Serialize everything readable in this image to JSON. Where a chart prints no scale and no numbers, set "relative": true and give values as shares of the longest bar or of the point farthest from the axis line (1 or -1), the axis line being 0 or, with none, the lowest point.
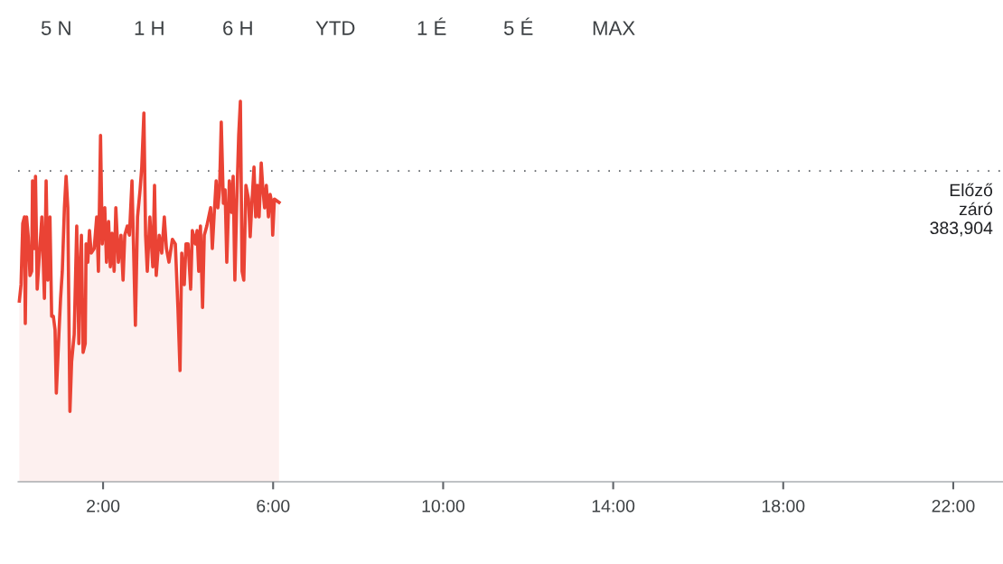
{
  "chart_data": {
    "type": "area",
    "relative": true,
    "color": "#ea4335",
    "x": [
      0.03,
      0.07,
      0.11,
      0.15,
      0.17,
      0.2,
      0.24,
      0.28,
      0.32,
      0.34,
      0.39,
      0.41,
      0.45,
      0.49,
      0.56,
      0.62,
      0.66,
      0.7,
      0.75,
      0.79,
      0.83,
      0.87,
      0.9,
      0.96,
      1.0,
      1.04,
      1.09,
      1.13,
      1.17,
      1.22,
      1.26,
      1.32,
      1.38,
      1.43,
      1.45,
      1.49,
      1.53,
      1.58,
      1.6,
      1.64,
      1.68,
      1.72,
      1.79,
      1.85,
      1.89,
      1.94,
      1.98,
      2.04,
      2.08,
      2.13,
      2.17,
      2.21,
      2.26,
      2.3,
      2.36,
      2.42,
      2.47,
      2.51,
      2.57,
      2.62,
      2.68,
      2.72,
      2.76,
      2.81,
      2.87,
      2.91,
      2.96,
      3.0,
      3.04,
      3.1,
      3.17,
      3.21,
      3.25,
      3.32,
      3.38,
      3.44,
      3.49,
      3.55,
      3.63,
      3.7,
      3.76,
      3.81,
      3.85,
      3.91,
      3.95,
      4.0,
      4.06,
      4.1,
      4.17,
      4.21,
      4.25,
      4.29,
      4.34,
      4.38,
      4.44,
      4.53,
      4.57,
      4.61,
      4.66,
      4.7,
      4.74,
      4.78,
      4.83,
      4.87,
      4.91,
      4.97,
      5.02,
      5.06,
      5.1,
      5.14,
      5.19,
      5.23,
      5.27,
      5.31,
      5.36,
      5.42,
      5.46,
      5.5,
      5.55,
      5.59,
      5.63,
      5.67,
      5.72,
      5.76,
      5.8,
      5.84,
      5.89,
      5.93,
      5.97,
      5.99,
      6.03,
      6.14
    ],
    "values": [
      0.475,
      0.518,
      0.679,
      0.696,
      0.416,
      0.696,
      0.644,
      0.542,
      0.553,
      0.791,
      0.613,
      0.803,
      0.506,
      0.577,
      0.696,
      0.482,
      0.791,
      0.53,
      0.696,
      0.435,
      0.435,
      0.399,
      0.233,
      0.387,
      0.482,
      0.553,
      0.72,
      0.803,
      0.72,
      0.185,
      0.316,
      0.387,
      0.672,
      0.363,
      0.53,
      0.648,
      0.34,
      0.363,
      0.625,
      0.577,
      0.66,
      0.601,
      0.613,
      0.696,
      0.553,
      0.91,
      0.625,
      0.72,
      0.577,
      0.684,
      0.565,
      0.653,
      0.553,
      0.72,
      0.577,
      0.648,
      0.53,
      0.648,
      0.672,
      0.648,
      0.791,
      0.601,
      0.411,
      0.696,
      0.767,
      0.827,
      0.969,
      0.648,
      0.553,
      0.696,
      0.565,
      0.779,
      0.542,
      0.648,
      0.601,
      0.696,
      0.613,
      0.577,
      0.637,
      0.625,
      0.458,
      0.292,
      0.601,
      0.518,
      0.625,
      0.625,
      0.506,
      0.66,
      0.625,
      0.66,
      0.553,
      0.672,
      0.458,
      0.648,
      0.672,
      0.72,
      0.613,
      0.696,
      0.791,
      0.72,
      0.767,
      0.945,
      0.732,
      0.767,
      0.577,
      0.791,
      0.708,
      0.803,
      0.53,
      0.72,
      0.91,
      1.0,
      0.553,
      0.53,
      0.779,
      0.743,
      0.644,
      0.732,
      0.827,
      0.696,
      0.779,
      0.696,
      0.838,
      0.767,
      0.72,
      0.779,
      0.696,
      0.755,
      0.732,
      0.648,
      0.743,
      0.734
    ],
    "xlim": [
      0,
      23.17
    ],
    "xticks": [
      {
        "value": 2,
        "label": "2:00"
      },
      {
        "value": 6,
        "label": "6:00"
      },
      {
        "value": 10,
        "label": "10:00"
      },
      {
        "value": 14,
        "label": "14:00"
      },
      {
        "value": 18,
        "label": "18:00"
      },
      {
        "value": 22,
        "label": "22:00"
      }
    ],
    "ref_lines": [
      {
        "axis": "y",
        "value": 0.817,
        "label": "Előző\nzáró\n383,904",
        "color": "#5f6368",
        "line_style": "dotted"
      }
    ],
    "annotations": [
      "5 N",
      "1 H",
      "6 H",
      "YTD",
      "1 É",
      "5 É",
      "MAX"
    ]
  }
}
